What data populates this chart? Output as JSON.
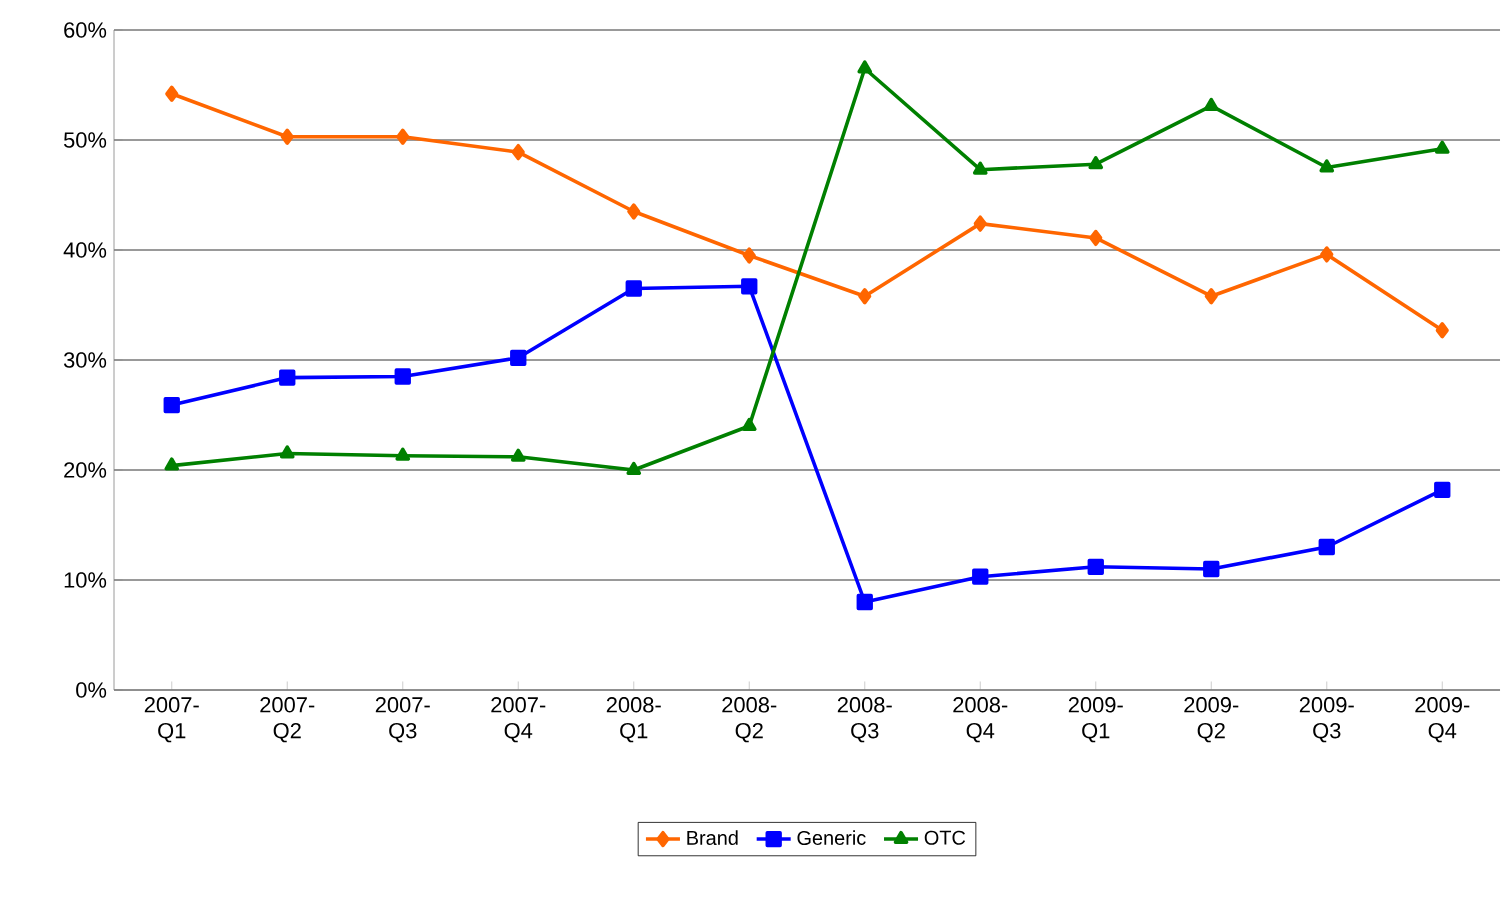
{
  "chart_data": {
    "type": "line",
    "categories": [
      "2007-Q1",
      "2007-Q2",
      "2007-Q3",
      "2007-Q4",
      "2008-Q1",
      "2008-Q2",
      "2008-Q3",
      "2008-Q4",
      "2009-Q1",
      "2009-Q2",
      "2009-Q3",
      "2009-Q4"
    ],
    "series": [
      {
        "name": "Brand",
        "color": "#ff6600",
        "marker": "diamond",
        "values": [
          54.2,
          50.3,
          50.3,
          48.9,
          43.5,
          39.5,
          35.8,
          42.4,
          41.1,
          35.8,
          39.6,
          32.7
        ]
      },
      {
        "name": "Generic",
        "color": "#0000ff",
        "marker": "square",
        "values": [
          25.9,
          28.4,
          28.5,
          30.2,
          36.5,
          36.7,
          8.0,
          10.3,
          11.2,
          11.0,
          13.0,
          18.2
        ]
      },
      {
        "name": "OTC",
        "color": "#008000",
        "marker": "triangle",
        "values": [
          20.4,
          21.5,
          21.3,
          21.2,
          20.0,
          24.0,
          56.5,
          47.3,
          47.8,
          53.1,
          47.5,
          49.2
        ]
      }
    ],
    "ylim": [
      0,
      60
    ],
    "yticks": [
      {
        "value": 0,
        "label": "0%"
      },
      {
        "value": 10,
        "label": "10%"
      },
      {
        "value": 20,
        "label": "20%"
      },
      {
        "value": 30,
        "label": "30%"
      },
      {
        "value": 40,
        "label": "40%"
      },
      {
        "value": 50,
        "label": "50%"
      },
      {
        "value": 60,
        "label": "60%"
      }
    ],
    "grid": "y",
    "legend": "bottom",
    "line_style": "solid"
  }
}
